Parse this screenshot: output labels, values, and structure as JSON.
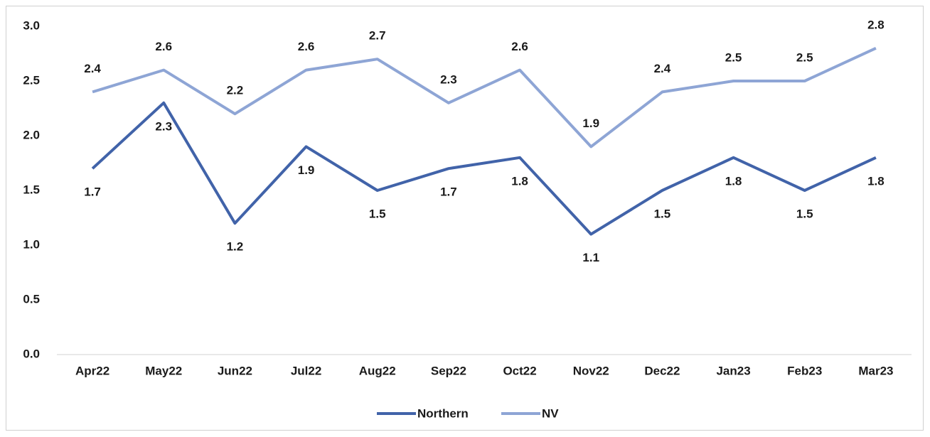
{
  "chart_data": {
    "type": "line",
    "categories": [
      "Apr22",
      "May22",
      "Jun22",
      "Jul22",
      "Aug22",
      "Sep22",
      "Oct22",
      "Nov22",
      "Dec22",
      "Jan23",
      "Feb23",
      "Mar23"
    ],
    "series": [
      {
        "name": "Northern",
        "color": "#4163a9",
        "values": [
          1.7,
          2.3,
          1.2,
          1.9,
          1.5,
          1.7,
          1.8,
          1.1,
          1.5,
          1.8,
          1.5,
          1.8
        ]
      },
      {
        "name": "NV",
        "color": "#8ea5d5",
        "values": [
          2.4,
          2.6,
          2.2,
          2.6,
          2.7,
          2.3,
          2.6,
          1.9,
          2.4,
          2.5,
          2.5,
          2.8
        ]
      }
    ],
    "ylim": [
      0,
      3
    ],
    "yticks": [
      {
        "value": 0,
        "label": "0.0"
      },
      {
        "value": 0.5,
        "label": "0.5"
      },
      {
        "value": 1,
        "label": "1.0"
      },
      {
        "value": 1.5,
        "label": "1.5"
      },
      {
        "value": 2,
        "label": "2.0"
      },
      {
        "value": 2.5,
        "label": "2.5"
      },
      {
        "value": 3,
        "label": "3.0"
      }
    ],
    "grid": false,
    "legend": "bottom"
  }
}
